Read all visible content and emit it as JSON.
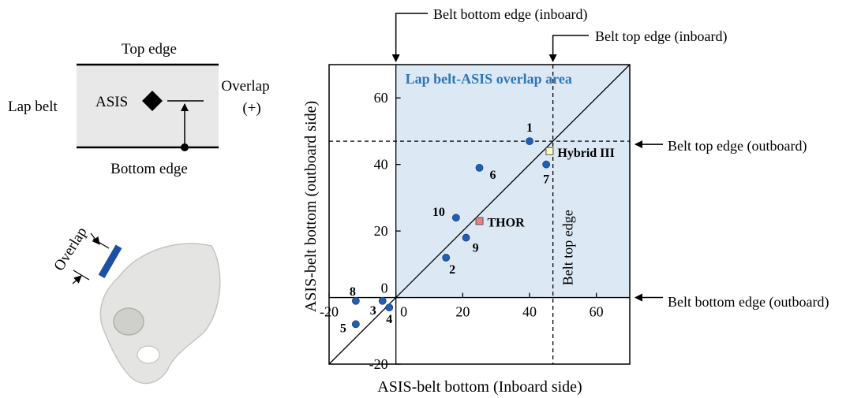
{
  "diagram": {
    "top_edge": "Top edge",
    "bottom_edge": "Bottom edge",
    "lap_belt": "Lap belt",
    "asis": "ASIS",
    "overlap": "Overlap",
    "overlap_sign": "(+)",
    "pelvis_overlap": "Overlap",
    "belt_fill": "#e8e8e8",
    "belt_strap_color": "#1f4fa0"
  },
  "chart_data": {
    "type": "scatter",
    "title": "",
    "xlabel": "ASIS-belt bottom (Inboard side)",
    "ylabel": "ASIS-belt bottom (outboard side)",
    "xlim": [
      -20,
      70
    ],
    "ylim": [
      -20,
      70
    ],
    "x_ticks": [
      -20,
      0,
      20,
      40,
      60
    ],
    "y_ticks": [
      -20,
      0,
      20,
      40,
      60
    ],
    "x_tick_labels": [
      "-20",
      "0",
      "20",
      "40",
      "60"
    ],
    "y_tick_labels": [
      "-20",
      "0",
      "20",
      "40",
      "60"
    ],
    "region_label": "Lap belt-ASIS overlap area",
    "region_color": "#dce9f5",
    "region_label_color": "#2e75b6",
    "point_color": "#1f5fb5",
    "threshold_x": 47,
    "threshold_y": 47,
    "vertical_line_label": "Belt top edge",
    "diagonal": true,
    "points": [
      {
        "label": "1",
        "x": 40,
        "y": 47
      },
      {
        "label": "2",
        "x": 15,
        "y": 12
      },
      {
        "label": "3",
        "x": -4,
        "y": -1
      },
      {
        "label": "4",
        "x": -2,
        "y": -3
      },
      {
        "label": "5",
        "x": -12,
        "y": -8
      },
      {
        "label": "6",
        "x": 25,
        "y": 39
      },
      {
        "label": "7",
        "x": 45,
        "y": 40
      },
      {
        "label": "8",
        "x": -12,
        "y": -1
      },
      {
        "label": "9",
        "x": 21,
        "y": 18
      },
      {
        "label": "10",
        "x": 18,
        "y": 24
      }
    ],
    "dummies": [
      {
        "label": "Hybrid III",
        "x": 46,
        "y": 44,
        "color": "#ffffc0"
      },
      {
        "label": "THOR",
        "x": 25,
        "y": 23,
        "color": "#f08080"
      }
    ],
    "callouts": {
      "bottom_inboard": "Belt bottom edge (inboard)",
      "top_inboard": "Belt top edge (inboard)",
      "top_outboard": "Belt top edge (outboard)",
      "bottom_outboard": "Belt bottom edge (outboard)"
    }
  }
}
